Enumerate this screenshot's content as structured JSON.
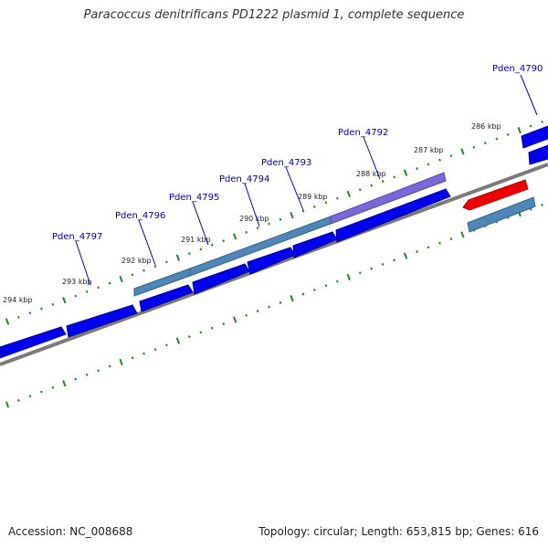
{
  "title": "Paracoccus denitrificans PD1222 plasmid 1, complete sequence",
  "footer": {
    "accession": "Accession: NC_008688",
    "stats": "Topology: circular; Length: 653,815 bp; Genes: 616"
  },
  "scale": {
    "ticks": [
      {
        "label": "286 kbp"
      },
      {
        "label": "287 kbp"
      },
      {
        "label": "288 kbp"
      },
      {
        "label": "289 kbp"
      },
      {
        "label": "290 kbp"
      },
      {
        "label": "291 kbp"
      },
      {
        "label": "292 kbp"
      },
      {
        "label": "293 kbp"
      },
      {
        "label": "294 kbp"
      }
    ]
  },
  "gene_labels": [
    {
      "label": "Pden_4790"
    },
    {
      "label": "Pden_4792"
    },
    {
      "label": "Pden_4793"
    },
    {
      "label": "Pden_4794"
    },
    {
      "label": "Pden_4795"
    },
    {
      "label": "Pden_4796"
    },
    {
      "label": "Pden_4797"
    }
  ],
  "colors": {
    "cds_forward": "#0000ee",
    "cds_reverse": "#0000ee",
    "gene_steelblue": "#4f86b8",
    "gene_purple": "#7b68d8",
    "gene_red": "#ee0000",
    "backbone": "#808080",
    "tick_green": "#1f8a1f",
    "label_blue": "#0000aa"
  }
}
